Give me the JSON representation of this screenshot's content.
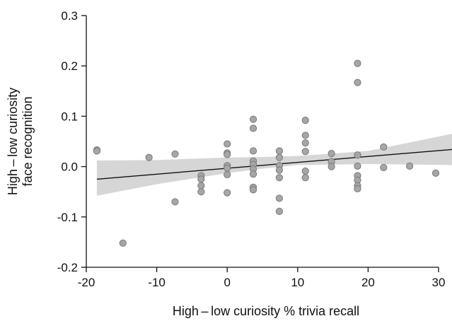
{
  "chart_data": {
    "type": "scatter",
    "title": "",
    "xlabel": "High – low curiosity % trivia recall",
    "ylabel_lines": [
      "High – low curiosity",
      "face recognition"
    ],
    "xlim": [
      -20,
      30
    ],
    "ylim": [
      -0.2,
      0.3
    ],
    "x_ticks": [
      -20,
      -10,
      0,
      10,
      20,
      30
    ],
    "x_tick_labels": [
      "-20",
      "-10",
      "0",
      "10",
      "20",
      "30"
    ],
    "y_ticks": [
      -0.2,
      -0.1,
      0.0,
      0.1,
      0.2,
      0.3
    ],
    "y_tick_labels": [
      "-0.2",
      "-0.1",
      "0.0",
      "0.1",
      "0.2",
      "0.3"
    ],
    "grid": false,
    "legend": "none",
    "points": [
      {
        "x": -18.5,
        "y": 0.033
      },
      {
        "x": -18.5,
        "y": 0.031
      },
      {
        "x": -14.8,
        "y": -0.152
      },
      {
        "x": -11.1,
        "y": 0.018
      },
      {
        "x": -7.4,
        "y": 0.025
      },
      {
        "x": -7.4,
        "y": -0.07
      },
      {
        "x": -3.7,
        "y": -0.018
      },
      {
        "x": -3.7,
        "y": -0.025
      },
      {
        "x": -3.7,
        "y": -0.038
      },
      {
        "x": -3.7,
        "y": -0.05
      },
      {
        "x": 0,
        "y": 0.045
      },
      {
        "x": 0,
        "y": 0.027
      },
      {
        "x": 0,
        "y": 0.024
      },
      {
        "x": 0,
        "y": 0.002
      },
      {
        "x": 0,
        "y": -0.003
      },
      {
        "x": 0,
        "y": -0.016
      },
      {
        "x": 0,
        "y": -0.052
      },
      {
        "x": 3.7,
        "y": 0.094
      },
      {
        "x": 3.7,
        "y": 0.076
      },
      {
        "x": 3.7,
        "y": 0.031
      },
      {
        "x": 3.7,
        "y": 0.011
      },
      {
        "x": 3.7,
        "y": 0.004
      },
      {
        "x": 3.7,
        "y": -0.005
      },
      {
        "x": 3.7,
        "y": -0.015
      },
      {
        "x": 3.7,
        "y": -0.041
      },
      {
        "x": 3.7,
        "y": -0.046
      },
      {
        "x": 7.4,
        "y": 0.031
      },
      {
        "x": 7.4,
        "y": 0.018
      },
      {
        "x": 7.4,
        "y": 0.002
      },
      {
        "x": 7.4,
        "y": -0.007
      },
      {
        "x": 7.4,
        "y": -0.022
      },
      {
        "x": 7.4,
        "y": -0.063
      },
      {
        "x": 7.4,
        "y": -0.089
      },
      {
        "x": 11.1,
        "y": 0.092
      },
      {
        "x": 11.1,
        "y": 0.062
      },
      {
        "x": 11.1,
        "y": 0.047
      },
      {
        "x": 11.1,
        "y": 0.03
      },
      {
        "x": 11.1,
        "y": -0.009
      },
      {
        "x": 11.1,
        "y": -0.022
      },
      {
        "x": 14.8,
        "y": 0.026
      },
      {
        "x": 14.8,
        "y": 0.01
      },
      {
        "x": 14.8,
        "y": 0.0
      },
      {
        "x": 18.5,
        "y": 0.205
      },
      {
        "x": 18.5,
        "y": 0.167
      },
      {
        "x": 18.5,
        "y": 0.023
      },
      {
        "x": 18.5,
        "y": 0.001
      },
      {
        "x": 18.5,
        "y": -0.018
      },
      {
        "x": 18.5,
        "y": -0.027
      },
      {
        "x": 18.5,
        "y": -0.038
      },
      {
        "x": 18.5,
        "y": -0.044
      },
      {
        "x": 22.2,
        "y": 0.039
      },
      {
        "x": 22.2,
        "y": -0.002
      },
      {
        "x": 25.9,
        "y": 0.001
      },
      {
        "x": 29.6,
        "y": -0.013
      }
    ],
    "regression": {
      "x": [
        -18.5,
        32
      ],
      "y": [
        -0.025,
        0.034
      ]
    },
    "confidence_band": {
      "x": [
        -18.5,
        -10,
        0,
        5,
        10,
        20,
        32
      ],
      "upper": [
        0.012,
        0.013,
        0.018,
        0.019,
        0.021,
        0.031,
        0.065
      ],
      "lower": [
        -0.058,
        -0.035,
        -0.013,
        -0.004,
        0.003,
        0.005,
        0.003
      ]
    },
    "colors": {
      "point_fill": "#a6a6a6",
      "point_stroke": "#7a7a7a",
      "band": "#d6d6d6",
      "line": "#111111",
      "axis": "#111111"
    }
  }
}
